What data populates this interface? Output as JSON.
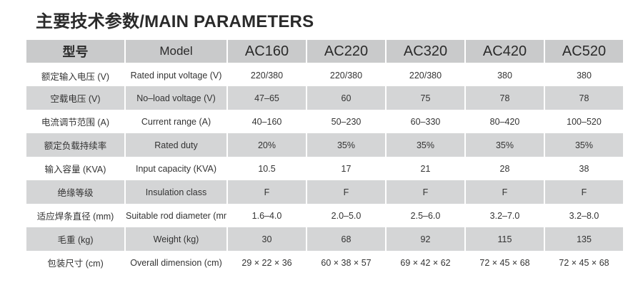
{
  "title": "主要技术参数/MAIN PARAMETERS",
  "header": {
    "label_cn": "型号",
    "label_en": "Model",
    "models": [
      "AC160",
      "AC220",
      "AC320",
      "AC420",
      "AC520"
    ]
  },
  "rows": [
    {
      "cn": "额定输入电压 (V)",
      "en": "Rated input voltage (V)",
      "values": [
        "220/380",
        "220/380",
        "220/380",
        "380",
        "380"
      ]
    },
    {
      "cn": "空载电压 (V)",
      "en": "No–load voltage (V)",
      "values": [
        "47–65",
        "60",
        "75",
        "78",
        "78"
      ]
    },
    {
      "cn": "电流调节范围 (A)",
      "en": "Current range (A)",
      "values": [
        "40–160",
        "50–230",
        "60–330",
        "80–420",
        "100–520"
      ]
    },
    {
      "cn": "额定负载持续率",
      "en": "Rated duty",
      "values": [
        "20%",
        "35%",
        "35%",
        "35%",
        "35%"
      ]
    },
    {
      "cn": "输入容量 (KVA)",
      "en": "Input capacity (KVA)",
      "values": [
        "10.5",
        "17",
        "21",
        "28",
        "38"
      ]
    },
    {
      "cn": "绝缘等级",
      "en": "Insulation class",
      "values": [
        "F",
        "F",
        "F",
        "F",
        "F"
      ]
    },
    {
      "cn": "适应焊条直径 (mm)",
      "en": "Suitable rod diameter (mm)",
      "values": [
        "1.6–4.0",
        "2.0–5.0",
        "2.5–6.0",
        "3.2–7.0",
        "3.2–8.0"
      ]
    },
    {
      "cn": "毛重 (kg)",
      "en": "Weight (kg)",
      "values": [
        "30",
        "68",
        "92",
        "115",
        "135"
      ]
    },
    {
      "cn": "包装尺寸 (cm)",
      "en": "Overall dimension (cm)",
      "values": [
        "29 × 22 × 36",
        "60 × 38 × 57",
        "69 × 42 × 62",
        "72 × 45 × 68",
        "72 × 45 × 68"
      ]
    }
  ]
}
